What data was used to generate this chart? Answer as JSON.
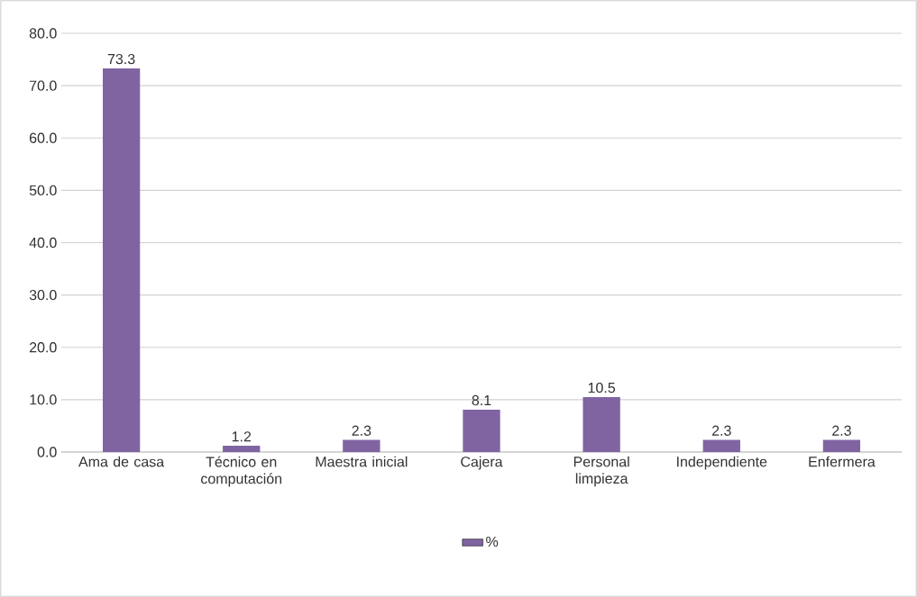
{
  "chart_data": {
    "type": "bar",
    "categories": [
      "Ama de casa",
      "Técnico en computación",
      "Maestra inicial",
      "Cajera",
      "Personal limpieza",
      "Independiente",
      "Enfermera"
    ],
    "series": [
      {
        "name": "%",
        "color": "#8064a2",
        "values": [
          73.3,
          1.2,
          2.3,
          8.1,
          10.5,
          2.3,
          2.3
        ]
      }
    ],
    "ylim": [
      0,
      80
    ],
    "yticks": [
      {
        "value": 0,
        "label": "0.0"
      },
      {
        "value": 10,
        "label": "10.0"
      },
      {
        "value": 20,
        "label": "20.0"
      },
      {
        "value": 30,
        "label": "30.0"
      },
      {
        "value": 40,
        "label": "40.0"
      },
      {
        "value": 50,
        "label": "50.0"
      },
      {
        "value": 60,
        "label": "60.0"
      },
      {
        "value": 70,
        "label": "70.0"
      },
      {
        "value": 80,
        "label": "80.0"
      }
    ],
    "grid": "y",
    "legend": "bottom",
    "data_labels": true
  }
}
